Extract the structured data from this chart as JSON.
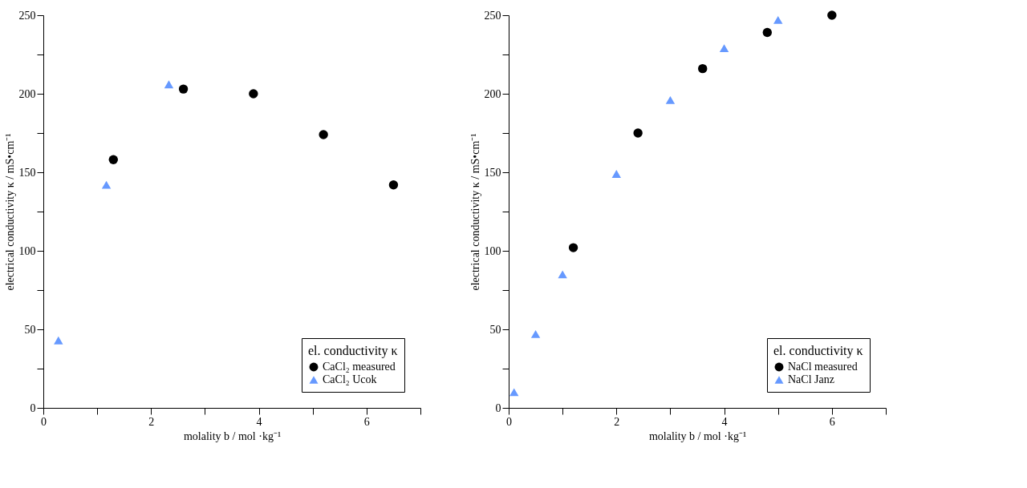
{
  "chart_data": [
    {
      "type": "scatter",
      "xlabel": "molality b / mol ·kg⁻¹",
      "ylabel": "electrical conductivity κ / mS•cm⁻¹",
      "legend_title": "el. conductivity κ",
      "legend": "bottom right",
      "grid": false,
      "xlim": [
        0,
        7
      ],
      "ylim": [
        0,
        250
      ],
      "xticks": [
        0,
        {
          "value": 1,
          "label": null
        },
        2,
        {
          "value": 3,
          "label": null
        },
        4,
        {
          "value": 5,
          "label": null
        },
        6,
        {
          "value": 7,
          "label": null
        }
      ],
      "yticks": [
        0,
        {
          "value": 25,
          "label": null
        },
        50,
        {
          "value": 75,
          "label": null
        },
        100,
        {
          "value": 125,
          "label": null
        },
        150,
        {
          "value": 175,
          "label": null
        },
        200,
        {
          "value": 225,
          "label": null
        },
        250
      ],
      "series": [
        {
          "name": "CaCl₂ measured",
          "color": "#000000",
          "marker": "circle",
          "x": [
            1.3,
            2.6,
            3.9,
            5.2,
            6.5
          ],
          "values": [
            158,
            203,
            200,
            174,
            142
          ]
        },
        {
          "name": "CaCl₂ Ucok",
          "color": "#6699ff",
          "marker": "triangle",
          "x": [
            0.28,
            1.17,
            2.33
          ],
          "values": [
            43,
            142,
            206
          ]
        }
      ]
    },
    {
      "type": "scatter",
      "xlabel": "molality b / mol ·kg⁻¹",
      "ylabel": "electrical conductivity κ / mS•cm⁻¹",
      "legend_title": "el. conductivity κ",
      "legend": "bottom right",
      "grid": false,
      "xlim": [
        0,
        7
      ],
      "ylim": [
        0,
        250
      ],
      "xticks": [
        0,
        {
          "value": 1,
          "label": null
        },
        2,
        {
          "value": 3,
          "label": null
        },
        4,
        {
          "value": 5,
          "label": null
        },
        6,
        {
          "value": 7,
          "label": null
        }
      ],
      "yticks": [
        0,
        {
          "value": 25,
          "label": null
        },
        50,
        {
          "value": 75,
          "label": null
        },
        100,
        {
          "value": 125,
          "label": null
        },
        150,
        {
          "value": 175,
          "label": null
        },
        200,
        {
          "value": 225,
          "label": null
        },
        250
      ],
      "series": [
        {
          "name": "NaCl measured",
          "color": "#000000",
          "marker": "circle",
          "x": [
            1.2,
            2.4,
            3.6,
            4.8,
            6.0
          ],
          "values": [
            102,
            175,
            216,
            239,
            250
          ]
        },
        {
          "name": "NaCl Janz",
          "color": "#6699ff",
          "marker": "triangle",
          "x": [
            0.1,
            0.5,
            1.0,
            2.0,
            3.0,
            4.0,
            5.0
          ],
          "values": [
            10,
            47,
            85,
            149,
            196,
            229,
            247
          ]
        }
      ]
    }
  ]
}
